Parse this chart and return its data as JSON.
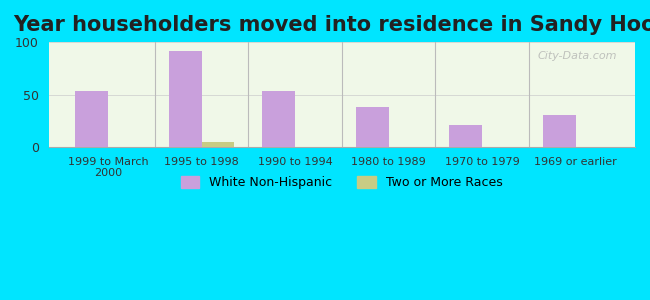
{
  "title": "Year householders moved into residence in Sandy Hook",
  "categories": [
    "1999 to March\n2000",
    "1995 to 1998",
    "1990 to 1994",
    "1980 to 1989",
    "1970 to 1979",
    "1969 or earlier"
  ],
  "white_non_hispanic": [
    53,
    92,
    53,
    38,
    21,
    31
  ],
  "two_or_more_races": [
    0,
    5,
    0,
    0,
    0,
    0
  ],
  "bar_color_white": "#c9a0dc",
  "bar_color_two": "#c8cc84",
  "background_outer": "#00e5ff",
  "background_inner": "#f0f8e8",
  "ylim": [
    0,
    100
  ],
  "yticks": [
    0,
    50,
    100
  ],
  "bar_width": 0.35,
  "title_fontsize": 15,
  "legend_labels": [
    "White Non-Hispanic",
    "Two or More Races"
  ],
  "watermark": "City-Data.com"
}
